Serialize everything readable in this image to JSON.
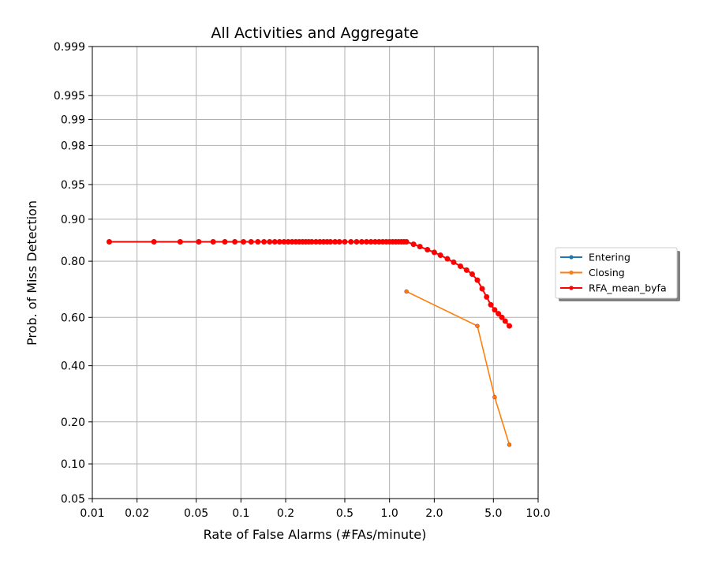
{
  "chart_data": {
    "type": "line",
    "title": "All Activities and Aggregate",
    "xlabel": "Rate of False Alarms (#FAs/minute)",
    "ylabel": "Prob. of Miss Detection",
    "x_scale": "log",
    "y_scale": "probit",
    "xlim": [
      0.01,
      10.0
    ],
    "ylim": [
      0.05,
      0.999
    ],
    "x_ticks": [
      0.01,
      0.02,
      0.05,
      0.1,
      0.2,
      0.5,
      1.0,
      2.0,
      5.0,
      10.0
    ],
    "x_tick_labels": [
      "0.01",
      "0.02",
      "0.05",
      "0.1",
      "0.2",
      "0.5",
      "1.0",
      "2.0",
      "5.0",
      "10.0"
    ],
    "y_ticks": [
      0.05,
      0.1,
      0.2,
      0.4,
      0.6,
      0.8,
      0.9,
      0.95,
      0.98,
      0.99,
      0.995,
      0.999
    ],
    "y_tick_labels": [
      "0.05",
      "0.10",
      "0.20",
      "0.40",
      "0.60",
      "0.80",
      "0.90",
      "0.95",
      "0.98",
      "0.99",
      "0.995",
      "0.999"
    ],
    "grid": true,
    "legend_position": "right-outside",
    "series": [
      {
        "name": "Entering",
        "color": "#1f77b4",
        "x": [],
        "y": []
      },
      {
        "name": "Closing",
        "color": "#ff7f0e",
        "x": [
          1.3,
          3.9,
          5.1,
          6.4
        ],
        "y": [
          0.7,
          0.565,
          0.28,
          0.14
        ]
      },
      {
        "name": "RFA_mean_byfa",
        "color": "#ff0000",
        "x": [
          0.013,
          0.026,
          0.039,
          0.052,
          0.065,
          0.078,
          0.091,
          0.104,
          0.117,
          0.13,
          0.143,
          0.156,
          0.169,
          0.182,
          0.195,
          0.208,
          0.221,
          0.234,
          0.247,
          0.26,
          0.273,
          0.286,
          0.3,
          0.32,
          0.34,
          0.36,
          0.38,
          0.4,
          0.43,
          0.46,
          0.5,
          0.55,
          0.6,
          0.65,
          0.7,
          0.75,
          0.8,
          0.85,
          0.9,
          0.95,
          1.0,
          1.05,
          1.1,
          1.15,
          1.2,
          1.25,
          1.3,
          1.45,
          1.6,
          1.8,
          2.0,
          2.2,
          2.45,
          2.7,
          3.0,
          3.3,
          3.6,
          3.9,
          4.2,
          4.5,
          4.8,
          5.1,
          5.4,
          5.7,
          6.0,
          6.4
        ],
        "y": [
          0.852,
          0.852,
          0.852,
          0.852,
          0.852,
          0.852,
          0.852,
          0.852,
          0.852,
          0.852,
          0.852,
          0.852,
          0.852,
          0.852,
          0.852,
          0.852,
          0.852,
          0.852,
          0.852,
          0.852,
          0.852,
          0.852,
          0.852,
          0.852,
          0.852,
          0.852,
          0.852,
          0.852,
          0.852,
          0.852,
          0.852,
          0.852,
          0.852,
          0.852,
          0.852,
          0.852,
          0.852,
          0.852,
          0.852,
          0.852,
          0.852,
          0.852,
          0.852,
          0.852,
          0.852,
          0.852,
          0.852,
          0.846,
          0.84,
          0.832,
          0.825,
          0.817,
          0.807,
          0.797,
          0.785,
          0.773,
          0.76,
          0.74,
          0.71,
          0.68,
          0.65,
          0.63,
          0.615,
          0.6,
          0.585,
          0.565
        ]
      }
    ]
  }
}
